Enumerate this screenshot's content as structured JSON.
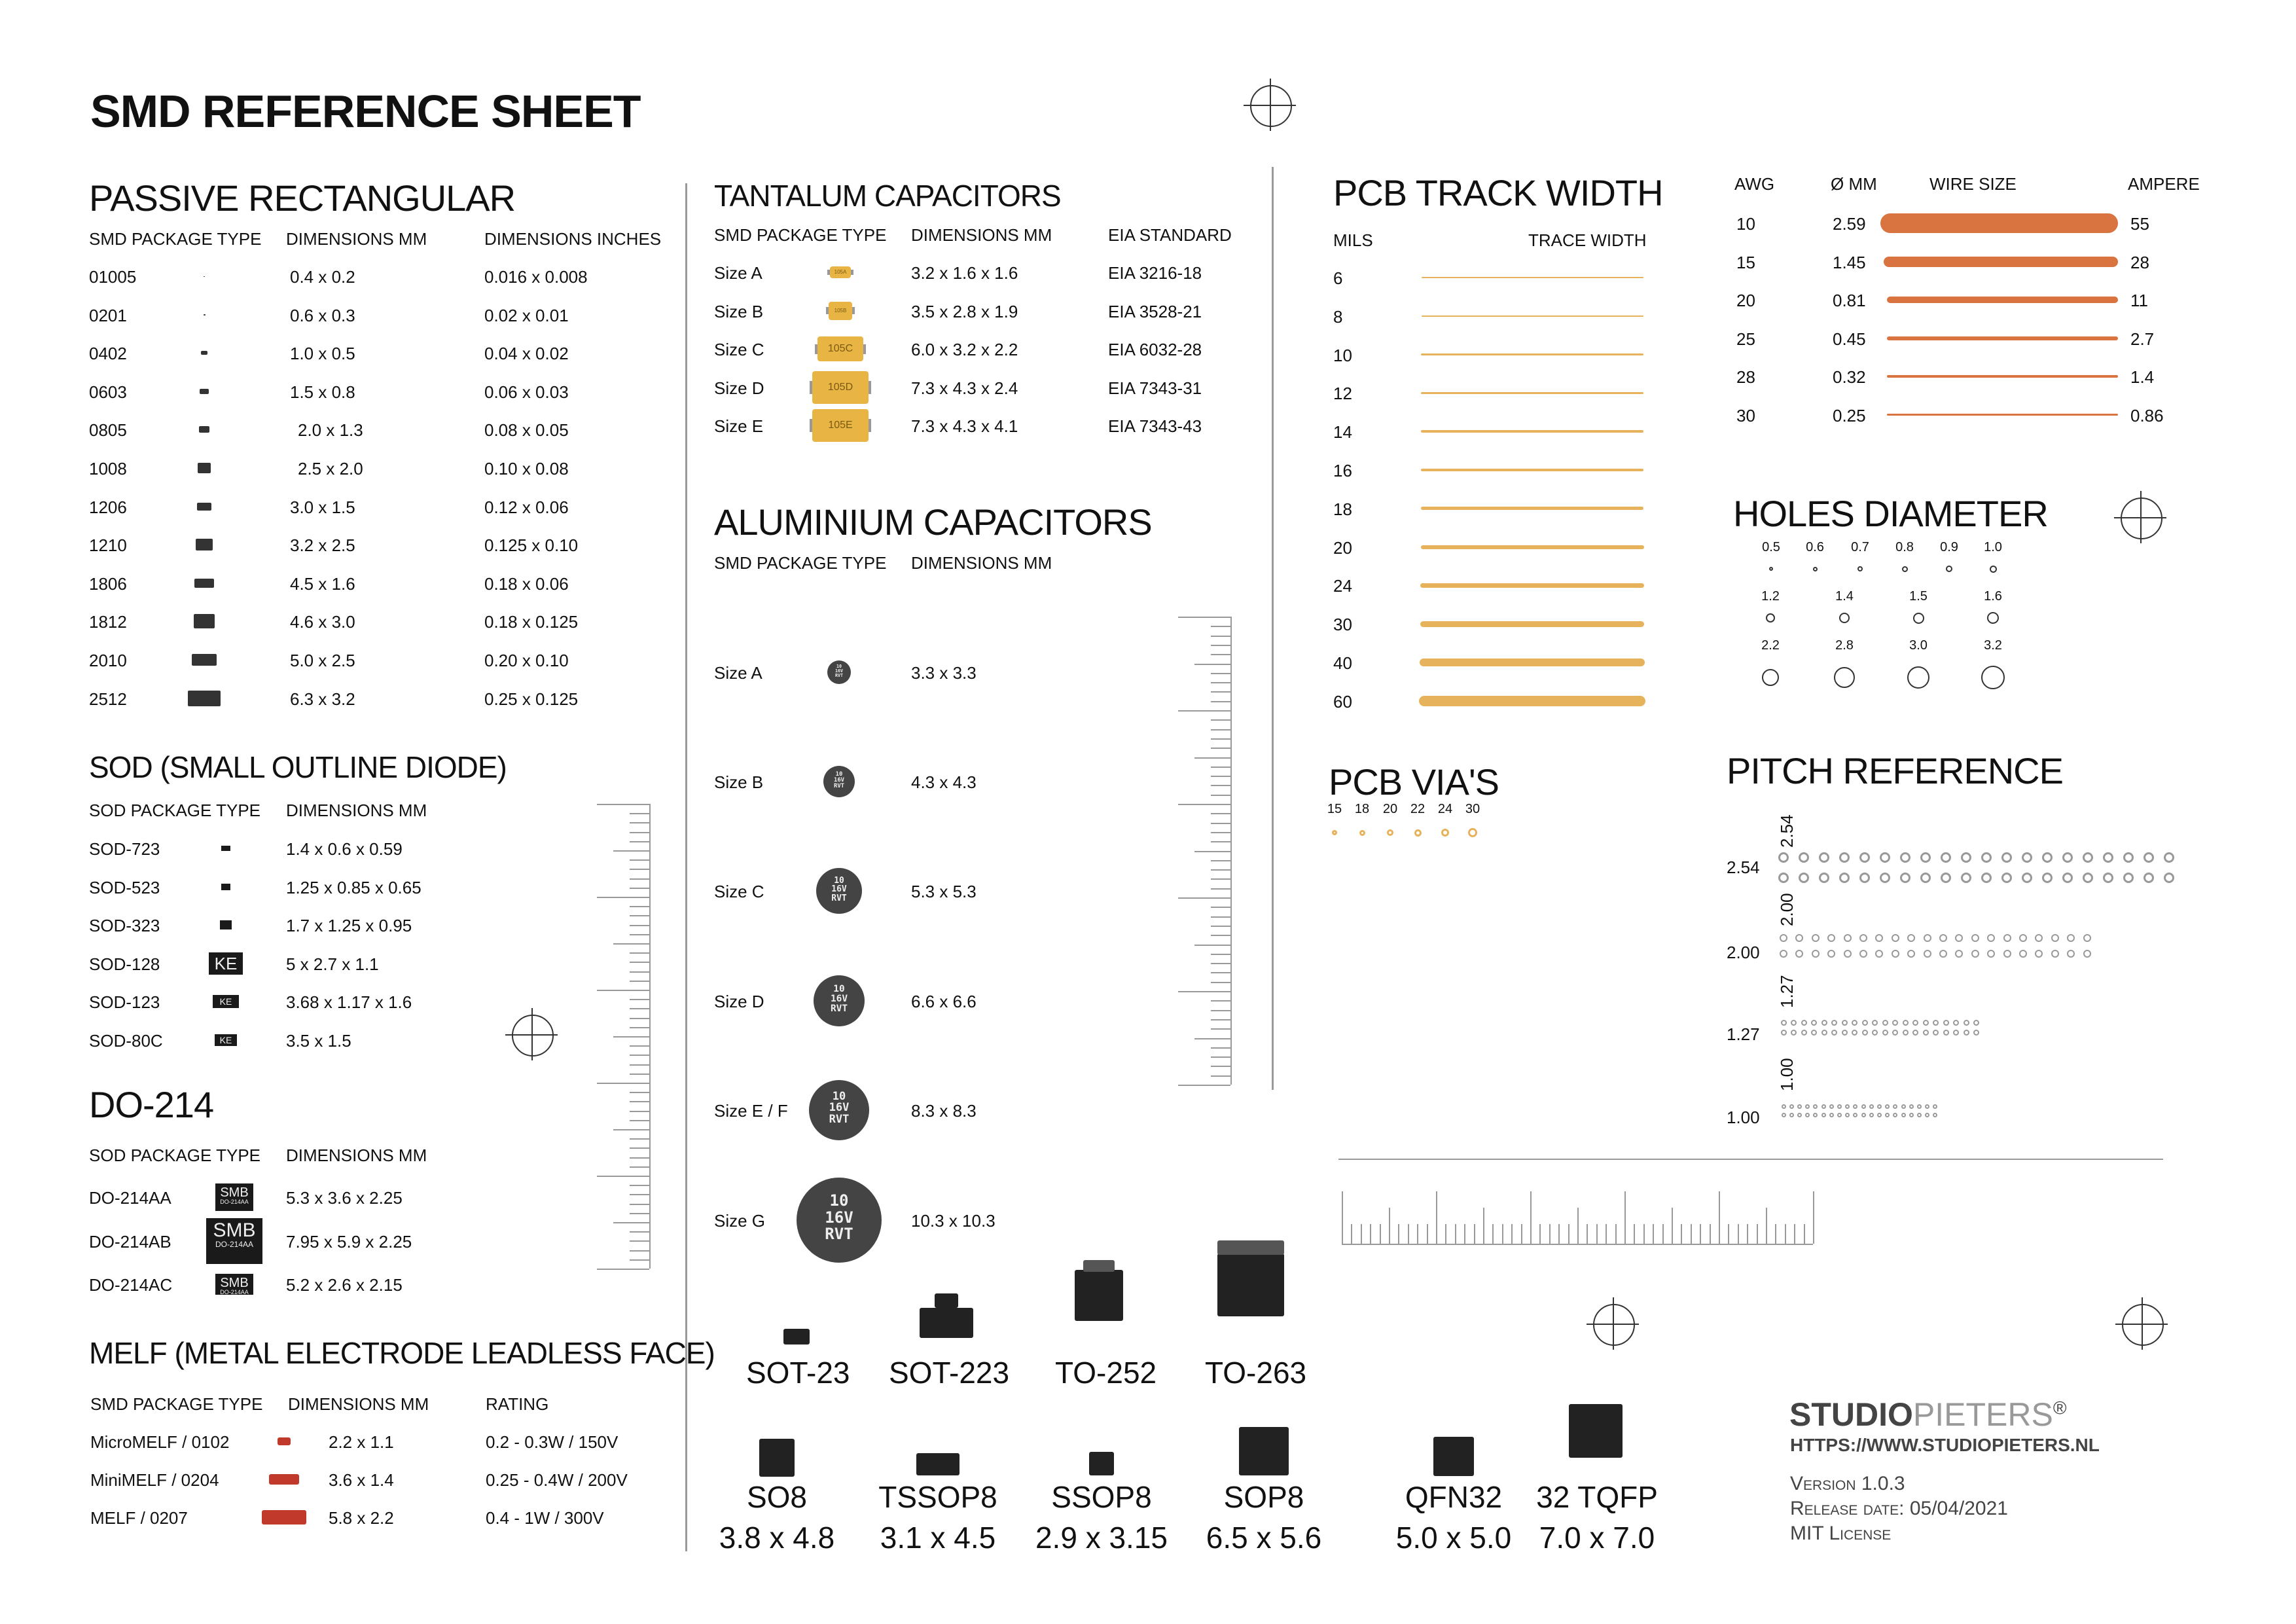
{
  "title": "SMD REFERENCE SHEET",
  "passive": {
    "heading": "PASSIVE RECTANGULAR",
    "cols": [
      "SMD PACKAGE TYPE",
      "DIMENSIONS MM",
      "DIMENSIONS INCHES"
    ],
    "rows": [
      [
        "01005",
        "0.4 x 0.2",
        "0.016 x 0.008"
      ],
      [
        "0201",
        "0.6 x  0.3",
        "0.02 x 0.01"
      ],
      [
        "0402",
        "1.0 x 0.5",
        "0.04 x 0.02"
      ],
      [
        "0603",
        "1.5 x 0.8",
        "0.06 x 0.03"
      ],
      [
        "0805",
        "2.0 x 1.3",
        "0.08 x 0.05"
      ],
      [
        "1008",
        "2.5 x 2.0",
        "0.10 x 0.08"
      ],
      [
        "1206",
        "3.0 x 1.5",
        "0.12 x 0.06"
      ],
      [
        "1210",
        "3.2 x 2.5",
        "0.125 x 0.10"
      ],
      [
        "1806",
        "4.5 x 1.6",
        "0.18 x 0.06"
      ],
      [
        "1812",
        "4.6 x 3.0",
        "0.18 x 0.125"
      ],
      [
        "2010",
        "5.0 x 2.5",
        "0.20 x 0.10"
      ],
      [
        "2512",
        "6.3 x 3.2",
        "0.25 x 0.125"
      ]
    ]
  },
  "sod": {
    "heading": "SOD (SMALL OUTLINE DIODE)",
    "cols": [
      "SOD PACKAGE TYPE",
      "DIMENSIONS MM"
    ],
    "rows": [
      [
        "SOD-723",
        "1.4 x 0.6 x 0.59"
      ],
      [
        "SOD-523",
        "1.25 x 0.85 x 0.65"
      ],
      [
        "SOD-323",
        "1.7 x 1.25 x 0.95"
      ],
      [
        "SOD-128",
        "5 x 2.7 x 1.1"
      ],
      [
        "SOD-123",
        "3.68 x 1.17 x 1.6"
      ],
      [
        "SOD-80C",
        "3.5 x 1.5"
      ]
    ],
    "chip_marks": [
      "KE",
      "KE",
      "KE"
    ]
  },
  "do214": {
    "heading": "DO-214",
    "cols": [
      "SOD PACKAGE TYPE",
      "DIMENSIONS MM"
    ],
    "rows": [
      [
        "DO-214AA",
        "5.3 x 3.6 x 2.25"
      ],
      [
        "DO-214AB",
        "7.95 x 5.9 x 2.25"
      ],
      [
        "DO-214AC",
        "5.2 x 2.6 x 2.15"
      ]
    ],
    "chip_marks": [
      "SMB",
      "SMB",
      "SMB"
    ],
    "chip_sub": "DO-214AA"
  },
  "melf": {
    "heading": "MELF (METAL ELECTRODE LEADLESS FACE)",
    "cols": [
      "SMD PACKAGE TYPE",
      "DIMENSIONS MM",
      "RATING"
    ],
    "rows": [
      [
        "MicroMELF / 0102",
        "2.2 x 1.1",
        "0.2 - 0.3W / 150V"
      ],
      [
        "MiniMELF / 0204",
        "3.6 x 1.4",
        "0.25 - 0.4W / 200V"
      ],
      [
        "MELF / 0207",
        "5.8 x 2.2",
        "0.4 - 1W / 300V"
      ]
    ]
  },
  "tantalum": {
    "heading": "TANTALUM CAPACITORS",
    "cols": [
      "SMD PACKAGE TYPE",
      "DIMENSIONS MM",
      "EIA STANDARD"
    ],
    "rows": [
      [
        "Size A",
        "3.2 x 1.6 x 1.6",
        "EIA 3216-18"
      ],
      [
        "Size B",
        "3.5 x 2.8 x 1.9",
        "EIA 3528-21"
      ],
      [
        "Size C",
        "6.0 x 3.2 x 2.2",
        "EIA 6032-28"
      ],
      [
        "Size D",
        "7.3 x 4.3 x 2.4",
        "EIA 7343-31"
      ],
      [
        "Size E",
        "7.3 x 4.3 x 4.1",
        "EIA 7343-43"
      ]
    ],
    "marks": [
      "105A",
      "105B",
      "105C",
      "105D",
      "105E"
    ]
  },
  "aluminium": {
    "heading": "ALUMINIUM CAPACITORS",
    "cols": [
      "SMD PACKAGE TYPE",
      "DIMENSIONS MM"
    ],
    "rows": [
      [
        "Size A",
        "3.3 x 3.3"
      ],
      [
        "Size B",
        "4.3 x 4.3"
      ],
      [
        "Size C",
        "5.3 x 5.3"
      ],
      [
        "Size D",
        "6.6 x 6.6"
      ],
      [
        "Size E / F",
        "8.3 x 8.3"
      ],
      [
        "Size G",
        "10.3 x 10.3"
      ]
    ],
    "cap_mark": [
      "10",
      "16V",
      "RVT"
    ]
  },
  "packages_row1": [
    "SOT-23",
    "SOT-223",
    "TO-252",
    "TO-263"
  ],
  "packages_row2": [
    {
      "name": "SO8",
      "dims": "3.8 x 4.8"
    },
    {
      "name": "TSSOP8",
      "dims": "3.1 x 4.5"
    },
    {
      "name": "SSOP8",
      "dims": "2.9 x 3.15"
    },
    {
      "name": "SOP8",
      "dims": "6.5 x 5.6"
    },
    {
      "name": "QFN32",
      "dims": "5.0 x 5.0"
    },
    {
      "name": "32 TQFP",
      "dims": "7.0 x 7.0"
    }
  ],
  "track": {
    "heading": "PCB TRACK WIDTH",
    "col_mils": "MILS",
    "col_width": "TRACE WIDTH",
    "mils": [
      "6",
      "8",
      "10",
      "12",
      "14",
      "16",
      "18",
      "20",
      "24",
      "30",
      "40",
      "60"
    ],
    "color": "#e6b35c"
  },
  "wire": {
    "cols": [
      "AWG",
      "Ø MM",
      "WIRE SIZE",
      "AMPERE"
    ],
    "rows": [
      [
        "10",
        "2.59",
        "55"
      ],
      [
        "15",
        "1.45",
        "28"
      ],
      [
        "20",
        "0.81",
        "11"
      ],
      [
        "25",
        "0.45",
        "2.7"
      ],
      [
        "28",
        "0.32",
        "1.4"
      ],
      [
        "30",
        "0.25",
        "0.86"
      ]
    ],
    "color": "#d9733f"
  },
  "holes": {
    "heading": "HOLES DIAMETER",
    "rows": [
      [
        "0.5",
        "0.6",
        "0.7",
        "0.8",
        "0.9",
        "1.0"
      ],
      [
        "1.2",
        "1.4",
        "1.5",
        "1.6"
      ],
      [
        "2.2",
        "2.8",
        "3.0",
        "3.2"
      ]
    ]
  },
  "vias": {
    "heading": "PCB VIA'S",
    "sizes": [
      "15",
      "18",
      "20",
      "22",
      "24",
      "30"
    ]
  },
  "pitch": {
    "heading": "PITCH REFERENCE",
    "values": [
      "2.54",
      "2.00",
      "1.27",
      "1.00"
    ]
  },
  "brand": {
    "name_bold": "STUDIO",
    "name_light": "PIETERS",
    "reg": "®",
    "url": "HTTPS://WWW.STUDIOPIETERS.NL",
    "version": "Version 1.0.3",
    "release": "Release date: 05/04/2021",
    "license": "MIT License"
  }
}
